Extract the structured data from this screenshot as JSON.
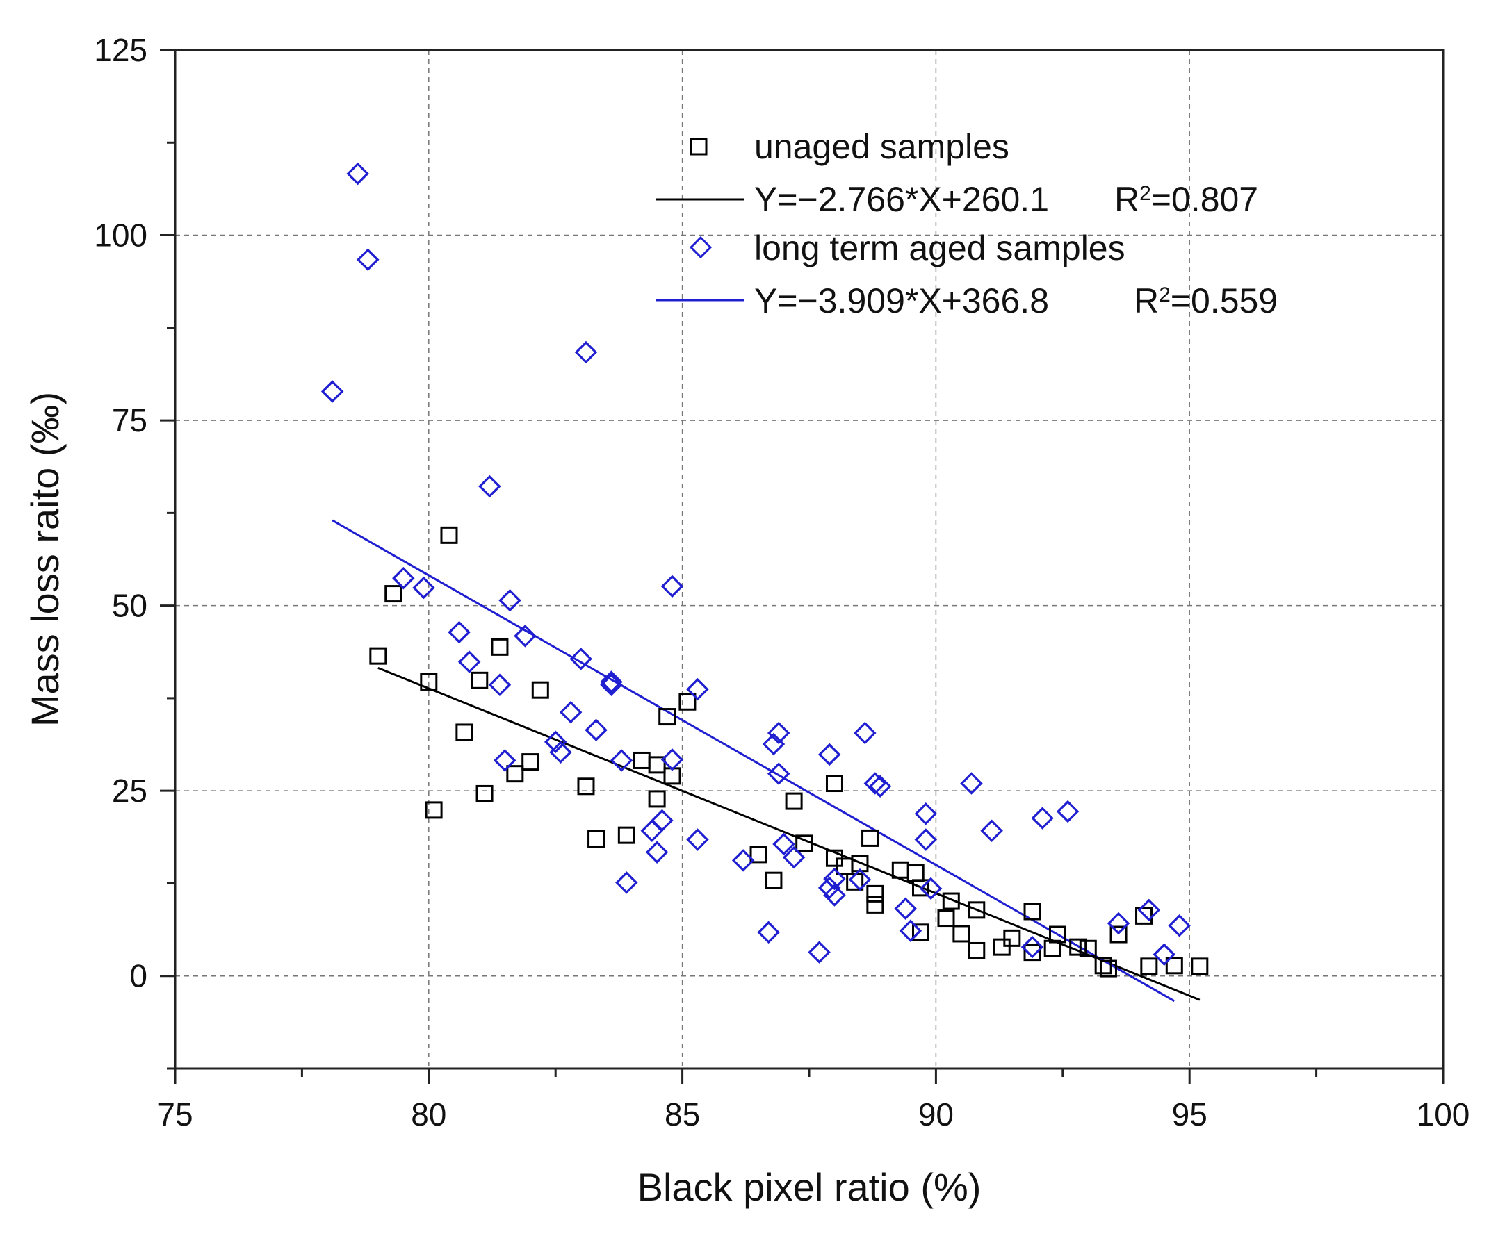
{
  "chart_data": {
    "type": "scatter",
    "xlabel": "Black pixel ratio (%)",
    "ylabel": "Mass loss raito (‰)",
    "xlim": [
      75,
      100
    ],
    "ylim": [
      -12.5,
      125
    ],
    "xticks": [
      75,
      80,
      85,
      90,
      95,
      100
    ],
    "yticks": [
      0,
      25,
      50,
      75,
      100,
      125
    ],
    "xtick_labels": [
      "75",
      "80",
      "85",
      "90",
      "95",
      "100"
    ],
    "ytick_labels": [
      "0",
      "25",
      "50",
      "75",
      "100",
      "125"
    ],
    "grid": true,
    "legend_position": "top-right",
    "series": [
      {
        "name": "unaged samples",
        "marker": "square",
        "color": "#000000",
        "points": [
          [
            79.0,
            43.2
          ],
          [
            79.3,
            51.6
          ],
          [
            80.0,
            39.7
          ],
          [
            80.1,
            22.4
          ],
          [
            80.4,
            59.5
          ],
          [
            80.7,
            32.9
          ],
          [
            81.0,
            39.9
          ],
          [
            81.1,
            24.6
          ],
          [
            81.4,
            44.4
          ],
          [
            81.7,
            27.3
          ],
          [
            82.0,
            28.9
          ],
          [
            82.2,
            38.6
          ],
          [
            83.1,
            25.6
          ],
          [
            83.3,
            18.5
          ],
          [
            83.9,
            19.0
          ],
          [
            84.2,
            29.1
          ],
          [
            84.5,
            28.5
          ],
          [
            84.5,
            23.9
          ],
          [
            84.7,
            35.0
          ],
          [
            84.8,
            27.0
          ],
          [
            85.1,
            37.0
          ],
          [
            86.5,
            16.4
          ],
          [
            86.8,
            12.9
          ],
          [
            87.2,
            23.6
          ],
          [
            87.4,
            17.9
          ],
          [
            88.0,
            26.0
          ],
          [
            88.0,
            15.9
          ],
          [
            88.2,
            14.8
          ],
          [
            88.4,
            12.7
          ],
          [
            88.5,
            15.2
          ],
          [
            88.7,
            18.6
          ],
          [
            88.8,
            9.6
          ],
          [
            88.8,
            11.1
          ],
          [
            89.3,
            14.3
          ],
          [
            89.6,
            13.9
          ],
          [
            89.7,
            11.9
          ],
          [
            89.7,
            5.9
          ],
          [
            90.2,
            7.8
          ],
          [
            90.3,
            10.1
          ],
          [
            90.5,
            5.7
          ],
          [
            90.8,
            3.4
          ],
          [
            90.8,
            8.9
          ],
          [
            91.3,
            3.9
          ],
          [
            91.5,
            5.1
          ],
          [
            91.9,
            3.2
          ],
          [
            91.9,
            8.7
          ],
          [
            92.3,
            3.7
          ],
          [
            92.4,
            5.6
          ],
          [
            92.8,
            3.9
          ],
          [
            93.0,
            3.7
          ],
          [
            93.3,
            1.4
          ],
          [
            93.4,
            1.0
          ],
          [
            93.6,
            5.6
          ],
          [
            94.1,
            8.1
          ],
          [
            94.2,
            1.3
          ],
          [
            94.7,
            1.4
          ],
          [
            95.2,
            1.3
          ]
        ],
        "fit": {
          "label": "Y=−2.766*X+260.1",
          "r2_label": "R",
          "r2_sup": "2",
          "r2_value": "=0.807",
          "x_range": [
            79.0,
            95.2
          ]
        }
      },
      {
        "name": "long term aged samples",
        "marker": "diamond",
        "color": "#1f1fd1",
        "points": [
          [
            78.1,
            78.9
          ],
          [
            78.6,
            108.3
          ],
          [
            78.8,
            96.7
          ],
          [
            79.5,
            53.7
          ],
          [
            79.9,
            52.4
          ],
          [
            80.6,
            46.4
          ],
          [
            80.8,
            42.4
          ],
          [
            81.2,
            66.1
          ],
          [
            81.4,
            39.3
          ],
          [
            81.5,
            29.1
          ],
          [
            81.6,
            50.7
          ],
          [
            81.9,
            45.9
          ],
          [
            82.5,
            31.6
          ],
          [
            82.6,
            30.2
          ],
          [
            82.8,
            35.6
          ],
          [
            83.0,
            42.8
          ],
          [
            83.1,
            84.2
          ],
          [
            83.3,
            33.2
          ],
          [
            83.6,
            39.7
          ],
          [
            83.6,
            39.3
          ],
          [
            83.8,
            29.1
          ],
          [
            83.9,
            12.6
          ],
          [
            84.4,
            19.6
          ],
          [
            84.5,
            16.7
          ],
          [
            84.6,
            21.0
          ],
          [
            84.8,
            52.6
          ],
          [
            84.8,
            29.2
          ],
          [
            85.3,
            38.7
          ],
          [
            85.3,
            18.4
          ],
          [
            86.2,
            15.6
          ],
          [
            86.7,
            5.9
          ],
          [
            86.8,
            31.3
          ],
          [
            86.9,
            32.8
          ],
          [
            86.9,
            27.3
          ],
          [
            87.0,
            17.8
          ],
          [
            87.2,
            16.0
          ],
          [
            87.7,
            3.2
          ],
          [
            87.9,
            29.9
          ],
          [
            87.9,
            11.9
          ],
          [
            88.0,
            10.9
          ],
          [
            88.0,
            13.1
          ],
          [
            88.5,
            13.0
          ],
          [
            88.6,
            32.8
          ],
          [
            88.8,
            26.0
          ],
          [
            88.9,
            25.6
          ],
          [
            89.4,
            9.1
          ],
          [
            89.5,
            6.1
          ],
          [
            89.8,
            21.9
          ],
          [
            89.8,
            18.4
          ],
          [
            89.9,
            11.8
          ],
          [
            90.7,
            26.0
          ],
          [
            91.1,
            19.6
          ],
          [
            91.9,
            3.9
          ],
          [
            92.1,
            21.3
          ],
          [
            92.6,
            22.2
          ],
          [
            93.6,
            7.1
          ],
          [
            94.2,
            8.9
          ],
          [
            94.5,
            2.9
          ],
          [
            94.8,
            6.8
          ]
        ],
        "fit": {
          "label": "Y=−3.909*X+366.8",
          "r2_label": "R",
          "r2_sup": "2",
          "r2_value": "=0.559",
          "x_range": [
            78.1,
            94.7
          ]
        }
      }
    ]
  }
}
